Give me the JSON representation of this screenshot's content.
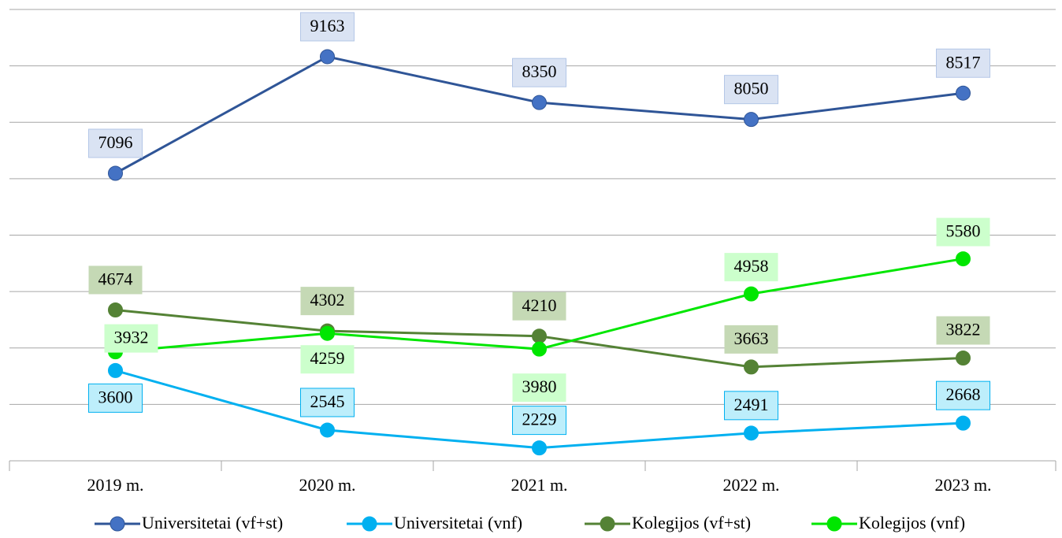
{
  "chart_data": {
    "type": "line",
    "categories": [
      "2019 m.",
      "2020 m.",
      "2021 m.",
      "2022 m.",
      "2023 m."
    ],
    "series": [
      {
        "name": "Universitetai (vf+st)",
        "color": "#4472c4",
        "values": [
          7096,
          9163,
          8350,
          8050,
          8517
        ]
      },
      {
        "name": "Universitetai (vnf)",
        "color": "#00b0f0",
        "values": [
          3600,
          2545,
          2229,
          2491,
          2668
        ]
      },
      {
        "name": "Kolegijos (vf+st)",
        "color": "#548235",
        "values": [
          4674,
          4302,
          4210,
          3663,
          3822
        ]
      },
      {
        "name": "Kolegijos (vnf)",
        "color": "#00e600",
        "values": [
          3932,
          4259,
          3980,
          4958,
          5580
        ]
      }
    ],
    "ylim": [
      2000,
      10000
    ],
    "yticks": [
      2000,
      3000,
      4000,
      5000,
      6000,
      7000,
      8000,
      9000,
      10000
    ],
    "grid": true,
    "legend": "bottom"
  }
}
